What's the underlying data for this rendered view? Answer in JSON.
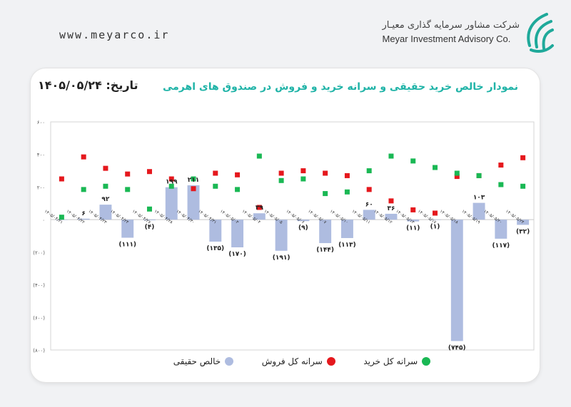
{
  "header": {
    "website": "www.meyarco.ir",
    "company_fa": "شرکت مشاور سرمایه گذاری معیـار",
    "company_en": "Meyar Investment Advisory Co."
  },
  "card": {
    "title": "نمودار خالص خرید حقیقی و سرانه خرید و فروش در صندوق های اهرمی",
    "date": "تاریخ: ۱۴۰۵/۰۵/۲۴"
  },
  "colors": {
    "bar": "#aebce0",
    "buy": "#1ab854",
    "sell": "#e5181d",
    "title": "#1fb3a7",
    "logo": "#1fa99a"
  },
  "chart_data": {
    "type": "bar",
    "categories": [
      "۱۴۰۵/۰۴/۲۱",
      "۱۴۰۵/۰۴/۲۲",
      "۱۴۰۵/۰۴/۲۳",
      "۱۴۰۵/۰۴/۲۴",
      "۱۴۰۵/۰۴/۲۷",
      "۱۴۰۵/۰۴/۲۸",
      "۱۴۰۵/۰۴/۳۰",
      "۱۴۰۵/۰۴/۳۱",
      "۱۴۰۵/۰۵/۰۳",
      "۱۴۰۵/۰۵/۰۴",
      "۱۴۰۵/۰۵/۰۵",
      "۱۴۰۵/۰۵/۰۶",
      "۱۴۰۵/۰۵/۰۷",
      "۱۴۰۵/۰۵/۱۰",
      "۱۴۰۵/۰۵/۱۱",
      "۱۴۰۵/۰۵/۱۲",
      "۱۴۰۵/۰۵/۱۳",
      "۱۴۰۵/۰۵/۱۷",
      "۱۴۰۵/۰۵/۱۸",
      "۱۴۰۵/۰۵/۱۹",
      "۱۴۰۵/۰۵/۲۰",
      "۱۴۰۵/۰۵/۲۴"
    ],
    "series": [
      {
        "name": "خالص حقیقی",
        "type": "bar",
        "values": [
          0,
          6,
          92,
          -111,
          -4,
          199,
          211,
          -135,
          -170,
          39,
          -191,
          -9,
          -144,
          -113,
          60,
          36,
          -11,
          -1,
          -745,
          103,
          -117,
          -32
        ],
        "labels": [
          "",
          "۶",
          "۹۲",
          "(۱۱۱)",
          "(۴)",
          "۱۹۹",
          "۲۱۱",
          "(۱۳۵)",
          "(۱۷۰)",
          "۳۹",
          "(۱۹۱)",
          "(۹)",
          "(۱۴۴)",
          "(۱۱۳)",
          "۶۰",
          "۳۶",
          "(۱۱)",
          "(۱)",
          "(۷۴۵)",
          "۱۰۳",
          "(۱۱۷)",
          "(۳۲)"
        ]
      },
      {
        "name": "سرانه کل فروش",
        "type": "scatter",
        "values": [
          250,
          385,
          315,
          280,
          295,
          250,
          190,
          285,
          275,
          75,
          285,
          300,
          285,
          270,
          185,
          115,
          60,
          40,
          265,
          270,
          335,
          380
        ]
      },
      {
        "name": "سرانه کل خرید",
        "type": "scatter",
        "values": [
          15,
          185,
          205,
          185,
          65,
          205,
          250,
          205,
          185,
          390,
          240,
          250,
          160,
          170,
          300,
          390,
          360,
          320,
          285,
          270,
          215,
          205
        ]
      }
    ],
    "yticks": [
      600,
      400,
      200,
      0,
      -200,
      -400,
      -600,
      -800
    ],
    "ytick_labels": [
      "۶۰۰",
      "۴۰۰",
      "۲۰۰",
      "۰",
      "(۲۰۰)",
      "(۴۰۰)",
      "(۶۰۰)",
      "(۸۰۰)"
    ],
    "ylim": [
      -800,
      600
    ],
    "grid": false,
    "legend": "bottom"
  }
}
